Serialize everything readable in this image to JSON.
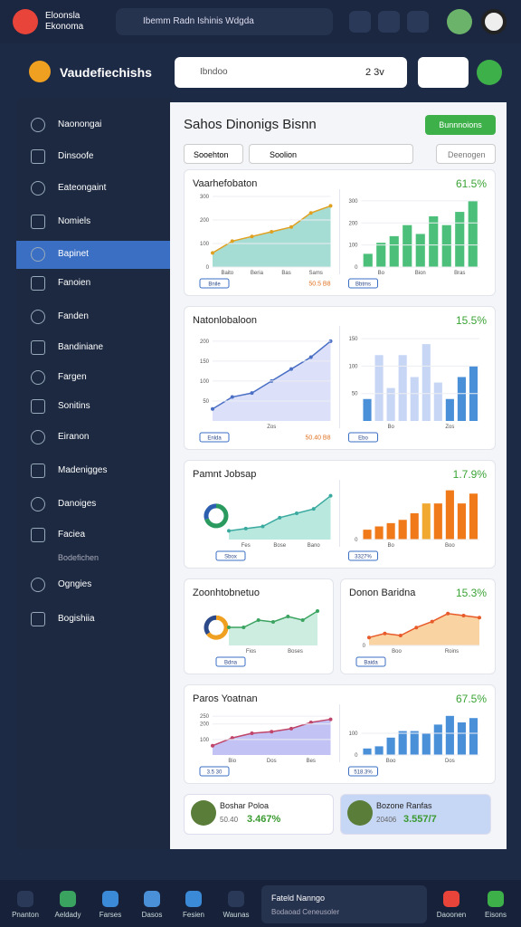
{
  "top_bar": {
    "brand": "Eloonsla Ekonoma",
    "search": "Ibemm Radn Ishinis Wdgda"
  },
  "header": {
    "title": "Vaudefiechishs",
    "search": "Ibndoo",
    "search_value": "2 3v"
  },
  "sidebar": {
    "items": [
      "Naonongai",
      "Dinsoofe",
      "Eateongaint",
      "Nomiels",
      "Bapinet",
      "Fanoien",
      "Fanden",
      "Bandiniane",
      "Fargen",
      "Sonitins",
      "Eiranon",
      "Madenigges",
      "Danoiges",
      "Faciea",
      "Ogngies",
      "Bogishiia"
    ],
    "sub": "Bodefichen"
  },
  "main": {
    "title": "Sahos Dinonigs Bisnn",
    "button": "Bunnnoions",
    "filter": "Sooehton",
    "filter2": "Soolion",
    "filter3": "Deenogen",
    "cards": [
      {
        "title": "Vaarhefobaton",
        "stat": "61.5%",
        "charts": [
          {
            "type": "area",
            "color": "#8fd3c9",
            "line": "#e0a020",
            "values": [
              60,
              110,
              130,
              150,
              170,
              230,
              260
            ],
            "ylim": [
              0,
              300
            ],
            "yticks": [
              0,
              100,
              200,
              300
            ],
            "xlabels": [
              "Baito",
              "Beria",
              "Bas",
              "Sams"
            ],
            "legend": "Bnile",
            "note": "50.5 B8"
          },
          {
            "type": "bar",
            "color": "#4cc07a",
            "values": [
              60,
              110,
              140,
              190,
              150,
              230,
              190,
              250,
              300
            ],
            "ylim": [
              0,
              320
            ],
            "yticks": [
              0,
              100,
              200,
              300
            ],
            "xlabels": [
              "Bo",
              "Bion",
              "Bras"
            ],
            "legend": "Bbtms"
          }
        ]
      },
      {
        "title": "Natonlobaloon",
        "stat": "15.5%",
        "charts": [
          {
            "type": "area",
            "color": "#d5d8f7",
            "line": "#4a6fc4",
            "values": [
              30,
              60,
              70,
              100,
              130,
              160,
              200
            ],
            "ylim": [
              0,
              220
            ],
            "yticks": [
              50,
              100,
              150,
              200
            ],
            "xlabels": [
              "Zos"
            ],
            "legend": "Enlda",
            "note": "50.40 B8"
          },
          {
            "type": "bar",
            "color": "#4a90d9",
            "colors": [
              "#4a90d9",
              "#c8d6f5",
              "#c8d6f5",
              "#c8d6f5",
              "#c8d6f5",
              "#c8d6f5",
              "#c8d6f5",
              "#4a90d9",
              "#4a90d9",
              "#4a90d9"
            ],
            "values": [
              40,
              120,
              60,
              120,
              80,
              140,
              70,
              40,
              80,
              100
            ],
            "ylim": [
              0,
              160
            ],
            "yticks": [
              50,
              100,
              150
            ],
            "xlabels": [
              "Bo",
              "Zos"
            ],
            "legend": "Ebo"
          }
        ]
      },
      {
        "title": "Pamnt Jobsap",
        "stat": "1.7.9%",
        "charts": [
          {
            "type": "area",
            "color": "#a7e3d6",
            "line": "#3aa99f",
            "values": [
              20,
              25,
              30,
              50,
              60,
              70,
              100
            ],
            "ylim": [
              0,
              120
            ],
            "yticks": [],
            "xlabels": [
              "Fes",
              "Bose",
              "Bano"
            ],
            "legend": "Sbox",
            "donut": {
              "values": [
                70,
                30
              ],
              "colors": [
                "#2b9a5f",
                "#2c5fb0"
              ]
            }
          },
          {
            "type": "bar",
            "color": "#f07a1a",
            "colors": [
              "#f07a1a",
              "#f07a1a",
              "#f07a1a",
              "#f07a1a",
              "#f07a1a",
              "#f0a830",
              "#f07a1a",
              "#f07a1a",
              "#f07a1a",
              "#f07a1a"
            ],
            "values": [
              30,
              40,
              50,
              60,
              80,
              110,
              110,
              150,
              110,
              140
            ],
            "ylim": [
              0,
              160
            ],
            "yticks": [
              0
            ],
            "xlabels": [
              "Bo",
              "Boo"
            ],
            "legend": "3327%"
          }
        ]
      },
      {
        "title": "Zoonhtobnetuo",
        "stat": "",
        "charts": [
          {
            "type": "area",
            "color": "#bfe8d8",
            "line": "#3aa35f",
            "values": [
              50,
              50,
              70,
              65,
              80,
              70,
              95
            ],
            "ylim": [
              0,
              110
            ],
            "yticks": [],
            "xlabels": [
              "Fios",
              "Boses"
            ],
            "legend": "Bdna",
            "donut": {
              "values": [
                65,
                35
              ],
              "colors": [
                "#f0a020",
                "#2c4a8a"
              ]
            }
          }
        ]
      },
      {
        "title": "Donon Baridna",
        "stat": "15.3%",
        "charts": [
          {
            "type": "area",
            "color": "#f7c88a",
            "line": "#e85a2a",
            "values": [
              20,
              30,
              25,
              45,
              60,
              80,
              75,
              70
            ],
            "ylim": [
              0,
              100
            ],
            "yticks": [
              0
            ],
            "xlabels": [
              "Boo",
              "Roins"
            ],
            "legend": "Baida"
          }
        ]
      },
      {
        "title": "Paros Yoatnan",
        "stat": "67.5%",
        "charts": [
          {
            "type": "area",
            "color": "#b4b3f2",
            "line": "#c0456a",
            "values": [
              60,
              110,
              140,
              150,
              170,
              210,
              230
            ],
            "ylim": [
              0,
              280
            ],
            "yticks": [
              100,
              200,
              250
            ],
            "xlabels": [
              "Bio",
              "Dos",
              "Bes"
            ],
            "legend": "3.5 30"
          },
          {
            "type": "bar",
            "color": "#4a90d9",
            "values": [
              30,
              40,
              80,
              110,
              110,
              100,
              140,
              180,
              150,
              170
            ],
            "ylim": [
              0,
              200
            ],
            "yticks": [
              0,
              100
            ],
            "xlabels": [
              "Boo",
              "Dos"
            ],
            "legend": "518.3%"
          }
        ]
      }
    ],
    "summary": [
      {
        "name": "Boshar Poloa",
        "value": "3.467%",
        "sub": "50.40"
      },
      {
        "name": "Bozone Ranfas",
        "value": "3.557/7",
        "sub": "20406"
      }
    ]
  },
  "bottom_nav": {
    "items": [
      "Pnanton",
      "Aeldady",
      "Farses",
      "Dasos",
      "Fesien",
      "Waunas",
      "Daoonen",
      "Eisons"
    ],
    "toast_title": "Fateld Nanngo",
    "toast_sub": "Bodaoad Ceneusoler"
  }
}
